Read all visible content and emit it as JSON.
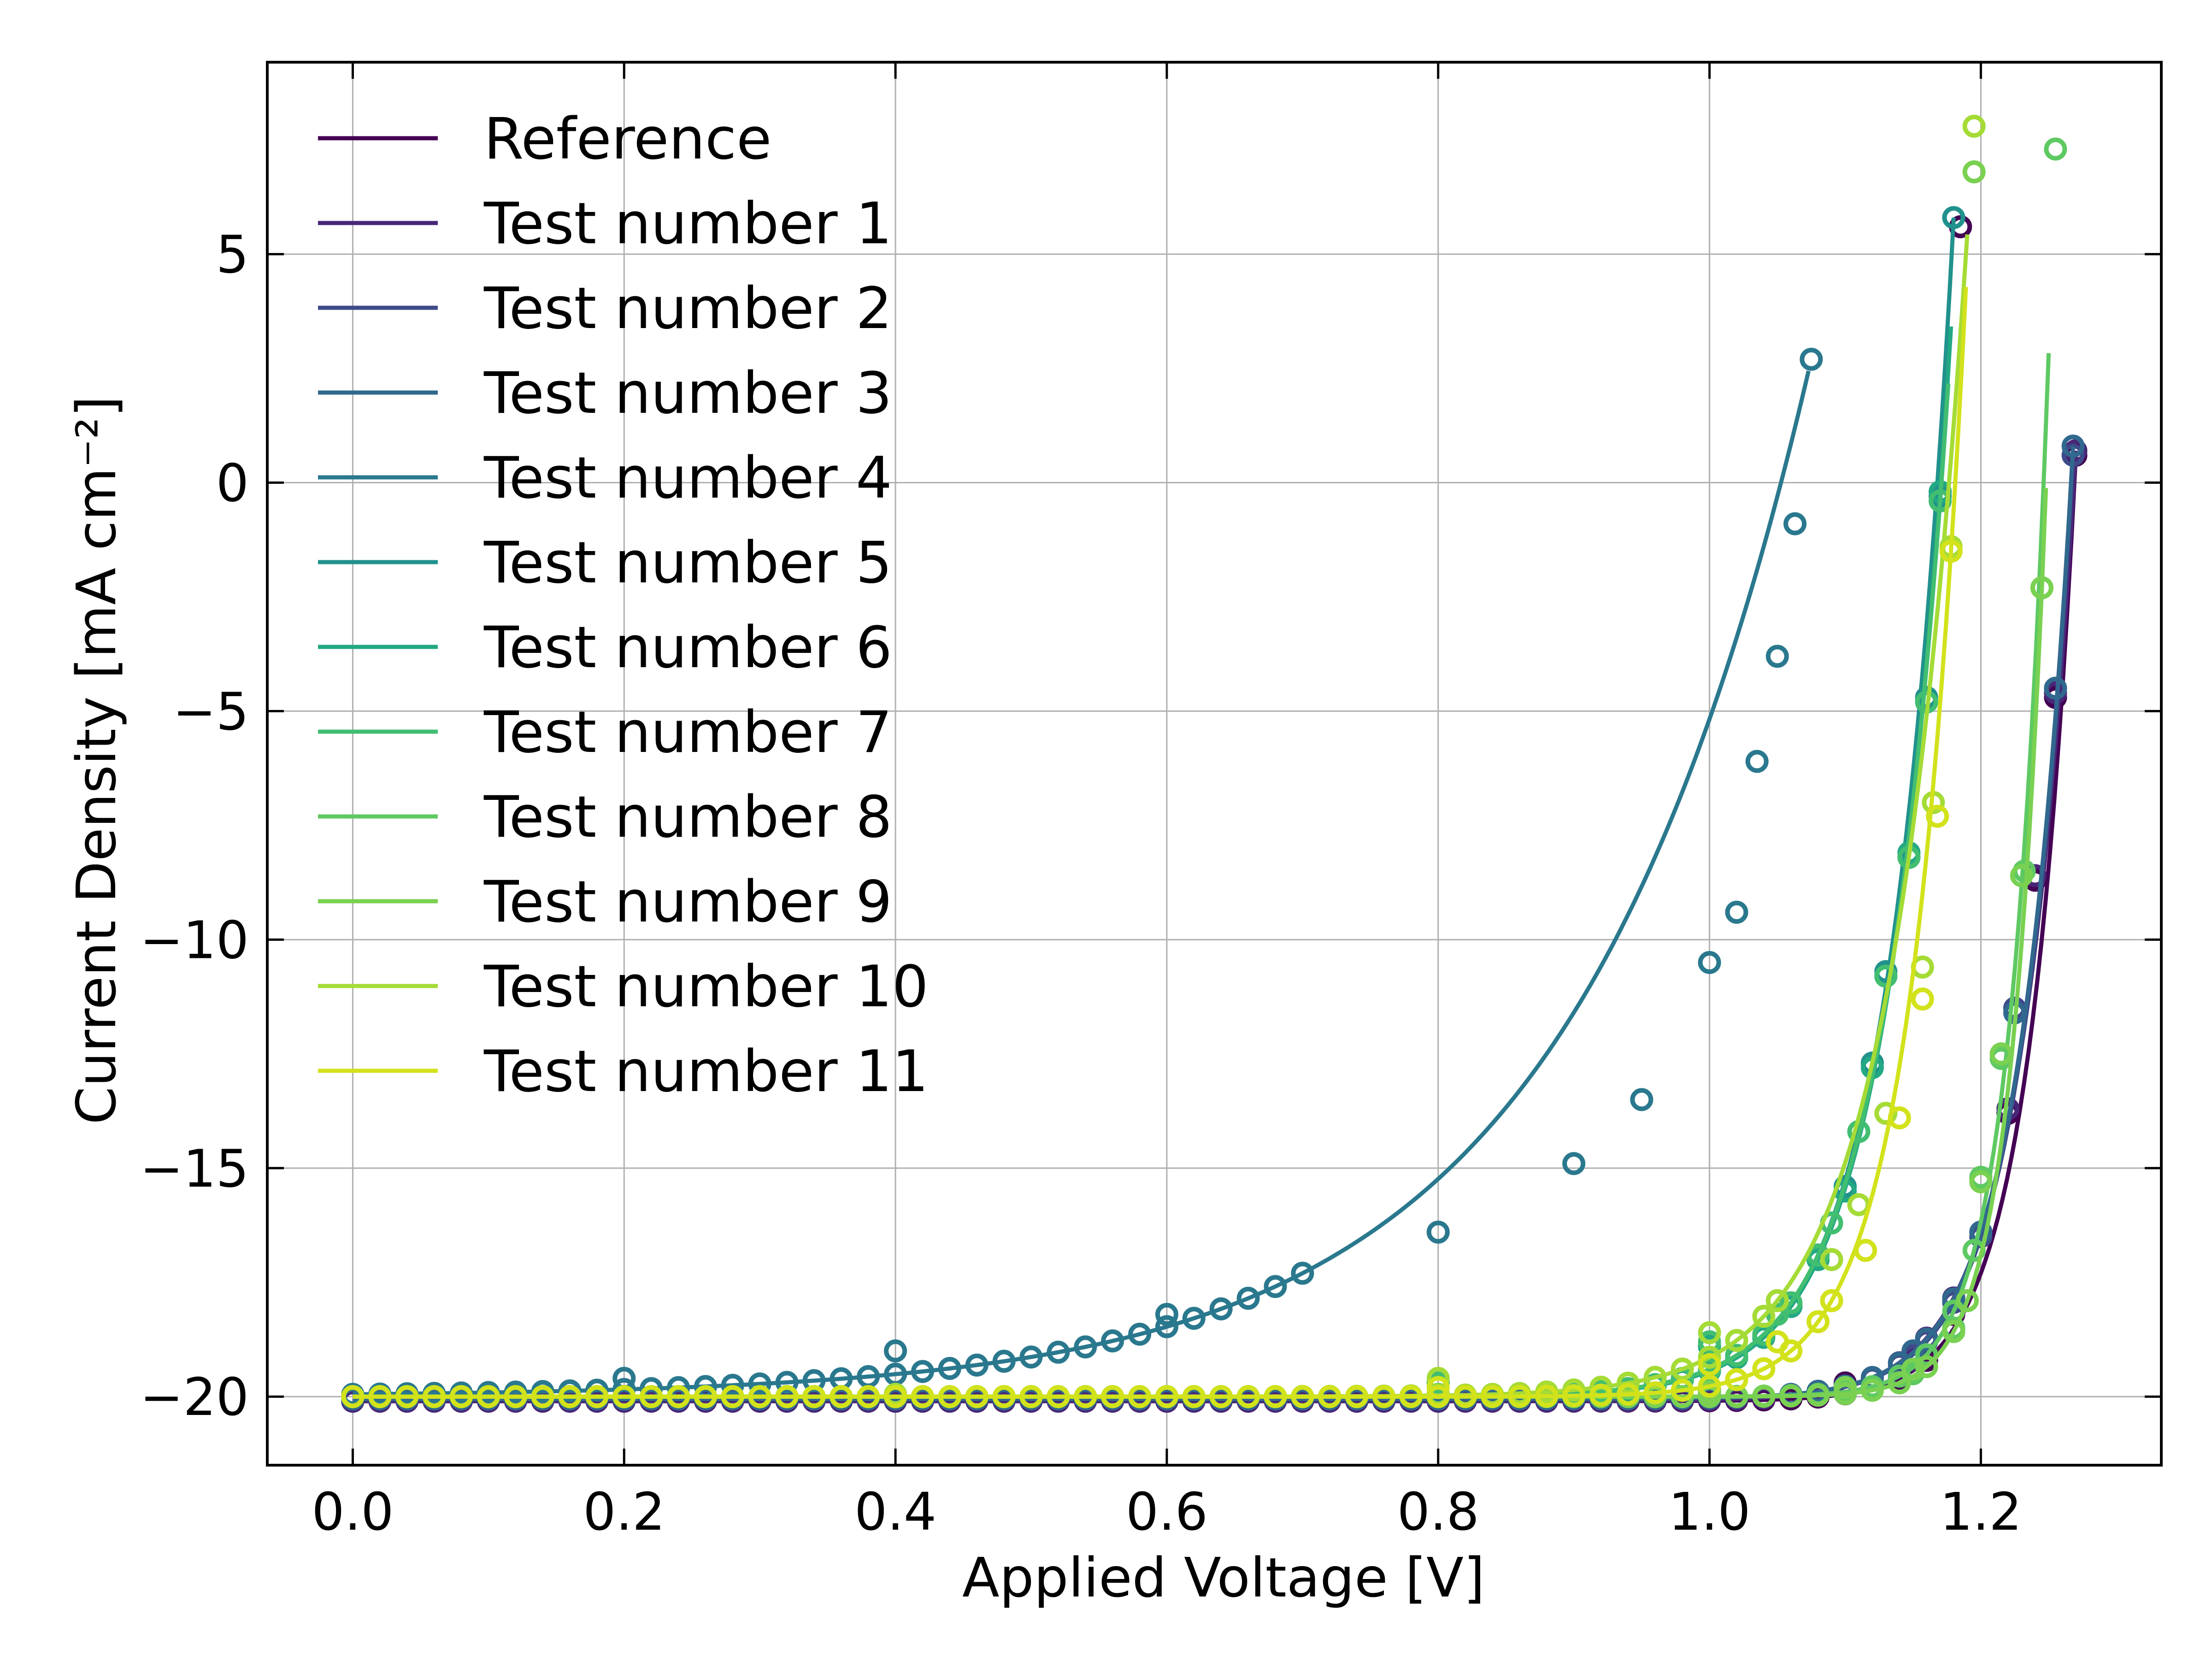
{
  "chart_data": {
    "type": "line",
    "xlabel": "Applied Voltage [V]",
    "ylabel": "Current Density [mA cm⁻²]",
    "xlim": [
      -0.063,
      1.333
    ],
    "ylim": [
      -21.5,
      9.2
    ],
    "xticks": [
      0.0,
      0.2,
      0.4,
      0.6,
      0.8,
      1.0,
      1.2
    ],
    "xtick_labels": [
      "0.0",
      "0.2",
      "0.4",
      "0.6",
      "0.8",
      "1.0",
      "1.2"
    ],
    "yticks": [
      5,
      0,
      -5,
      -10,
      -15,
      -20
    ],
    "ytick_labels": [
      "5",
      "0",
      "−5",
      "−10",
      "−15",
      "−20"
    ],
    "grid": true,
    "legend_position": "top-left",
    "marker_note": "markers = measured points, lines = fits",
    "series": [
      {
        "name": "Reference",
        "color": "#440154",
        "fit_voc": 1.27,
        "markers": [
          [
            0,
            -20.1
          ],
          [
            0.2,
            -20.1
          ],
          [
            0.4,
            -20.1
          ],
          [
            0.6,
            -20.1
          ],
          [
            0.8,
            -20.05
          ],
          [
            1.0,
            -19.95
          ],
          [
            1.1,
            -19.7
          ],
          [
            1.15,
            -19.2
          ],
          [
            1.18,
            -18.2
          ],
          [
            1.2,
            -16.4
          ],
          [
            1.22,
            -13.8
          ],
          [
            1.24,
            -8.7
          ],
          [
            1.255,
            -4.7
          ],
          [
            1.27,
            0.6
          ],
          [
            1.185,
            5.6
          ]
        ]
      },
      {
        "name": "Test number 1",
        "color": "#482677",
        "fit_voc": 1.27,
        "markers": [
          [
            0,
            -20.1
          ],
          [
            0.4,
            -20.1
          ],
          [
            0.8,
            -20.05
          ],
          [
            1.0,
            -19.9
          ],
          [
            1.15,
            -19.2
          ],
          [
            1.2,
            -16.4
          ],
          [
            1.22,
            -13.7
          ],
          [
            1.24,
            -8.6
          ],
          [
            1.255,
            -4.6
          ],
          [
            1.27,
            0.7
          ]
        ]
      },
      {
        "name": "Test number 2",
        "color": "#3e4a89",
        "fit_voc": 1.268,
        "markers": [
          [
            0,
            -20.05
          ],
          [
            0.4,
            -20.05
          ],
          [
            0.8,
            -20.0
          ],
          [
            1.0,
            -19.85
          ],
          [
            1.15,
            -19.1
          ],
          [
            1.2,
            -16.5
          ],
          [
            1.225,
            -11.5
          ],
          [
            1.255,
            -4.5
          ],
          [
            1.268,
            0.6
          ]
        ]
      },
      {
        "name": "Test number 3",
        "color": "#31688e",
        "fit_voc": 1.268,
        "markers": [
          [
            0,
            -20.05
          ],
          [
            0.4,
            -20.05
          ],
          [
            0.8,
            -20.0
          ],
          [
            1.0,
            -19.85
          ],
          [
            1.15,
            -19.0
          ],
          [
            1.2,
            -16.4
          ],
          [
            1.225,
            -11.6
          ],
          [
            1.255,
            -4.5
          ],
          [
            1.268,
            0.8
          ]
        ]
      },
      {
        "name": "Test number 4",
        "color": "#2a788e",
        "fit_voc": 1.073,
        "markers": [
          [
            0,
            -20.0
          ],
          [
            0.2,
            -19.6
          ],
          [
            0.4,
            -19.0
          ],
          [
            0.6,
            -18.2
          ],
          [
            0.7,
            -17.3
          ],
          [
            0.8,
            -16.4
          ],
          [
            0.9,
            -14.9
          ],
          [
            0.95,
            -13.5
          ],
          [
            1.0,
            -10.5
          ],
          [
            1.02,
            -9.4
          ],
          [
            1.035,
            -6.1
          ],
          [
            1.05,
            -3.8
          ],
          [
            1.063,
            -0.9
          ],
          [
            1.075,
            2.7
          ]
        ]
      },
      {
        "name": "Test number 5",
        "color": "#21918c",
        "fit_voc": 1.18,
        "markers": [
          [
            0,
            -20.0
          ],
          [
            0.4,
            -19.95
          ],
          [
            0.8,
            -19.7
          ],
          [
            1.0,
            -18.9
          ],
          [
            1.08,
            -16.9
          ],
          [
            1.1,
            -15.4
          ],
          [
            1.12,
            -12.7
          ],
          [
            1.13,
            -10.7
          ],
          [
            1.147,
            -8.2
          ],
          [
            1.16,
            -4.7
          ],
          [
            1.17,
            -0.3
          ],
          [
            1.18,
            5.8
          ]
        ]
      },
      {
        "name": "Test number 6",
        "color": "#22a884",
        "fit_voc": 1.178,
        "markers": [
          [
            0,
            -20.0
          ],
          [
            0.4,
            -19.95
          ],
          [
            0.8,
            -19.7
          ],
          [
            1.0,
            -18.9
          ],
          [
            1.08,
            -17.0
          ],
          [
            1.1,
            -15.5
          ],
          [
            1.12,
            -12.8
          ],
          [
            1.13,
            -10.8
          ],
          [
            1.147,
            -8.1
          ],
          [
            1.16,
            -4.8
          ],
          [
            1.17,
            -0.2
          ]
        ]
      },
      {
        "name": "Test number 7",
        "color": "#42be71",
        "fit_voc": 1.176,
        "markers": [
          [
            0,
            -20.0
          ],
          [
            0.4,
            -19.95
          ],
          [
            0.8,
            -19.7
          ],
          [
            1.0,
            -18.8
          ],
          [
            1.05,
            -18.2
          ],
          [
            1.09,
            -16.2
          ],
          [
            1.11,
            -14.2
          ],
          [
            1.13,
            -10.8
          ],
          [
            1.147,
            -8.2
          ],
          [
            1.16,
            -4.8
          ],
          [
            1.17,
            -0.4
          ]
        ]
      },
      {
        "name": "Test number 8",
        "color": "#5ec962",
        "fit_voc": 1.25,
        "markers": [
          [
            0,
            -20.0
          ],
          [
            0.4,
            -20.0
          ],
          [
            0.8,
            -19.95
          ],
          [
            1.0,
            -19.9
          ],
          [
            1.1,
            -19.8
          ],
          [
            1.15,
            -19.5
          ],
          [
            1.18,
            -18.5
          ],
          [
            1.195,
            -16.8
          ],
          [
            1.2,
            -15.2
          ],
          [
            1.215,
            -12.6
          ],
          [
            1.232,
            -8.5
          ],
          [
            1.245,
            -2.3
          ],
          [
            1.255,
            7.3
          ]
        ]
      },
      {
        "name": "Test number 9",
        "color": "#7ad151",
        "fit_voc": 1.248,
        "markers": [
          [
            0,
            -20.0
          ],
          [
            0.4,
            -20.0
          ],
          [
            0.8,
            -19.95
          ],
          [
            1.0,
            -19.9
          ],
          [
            1.1,
            -19.8
          ],
          [
            1.15,
            -19.4
          ],
          [
            1.19,
            -17.9
          ],
          [
            1.2,
            -15.3
          ],
          [
            1.215,
            -12.5
          ],
          [
            1.23,
            -8.6
          ],
          [
            1.245,
            -2.3
          ],
          [
            1.195,
            6.8
          ]
        ]
      },
      {
        "name": "Test number 10",
        "color": "#a5db36",
        "fit_voc": 1.19,
        "markers": [
          [
            0,
            -20.0
          ],
          [
            0.4,
            -19.95
          ],
          [
            0.8,
            -19.6
          ],
          [
            1.0,
            -18.6
          ],
          [
            1.05,
            -17.9
          ],
          [
            1.09,
            -17.0
          ],
          [
            1.11,
            -15.8
          ],
          [
            1.13,
            -13.8
          ],
          [
            1.157,
            -10.6
          ],
          [
            1.165,
            -7.0
          ],
          [
            1.178,
            -1.4
          ],
          [
            1.195,
            7.8
          ]
        ]
      },
      {
        "name": "Test number 11",
        "color": "#d2e21b",
        "fit_voc": 1.189,
        "markers": [
          [
            0,
            -20.0
          ],
          [
            0.4,
            -20.0
          ],
          [
            0.8,
            -19.8
          ],
          [
            1.0,
            -19.3
          ],
          [
            1.05,
            -18.8
          ],
          [
            1.09,
            -17.9
          ],
          [
            1.115,
            -16.8
          ],
          [
            1.14,
            -13.9
          ],
          [
            1.157,
            -11.3
          ],
          [
            1.168,
            -7.3
          ],
          [
            1.178,
            -1.5
          ]
        ]
      }
    ]
  }
}
